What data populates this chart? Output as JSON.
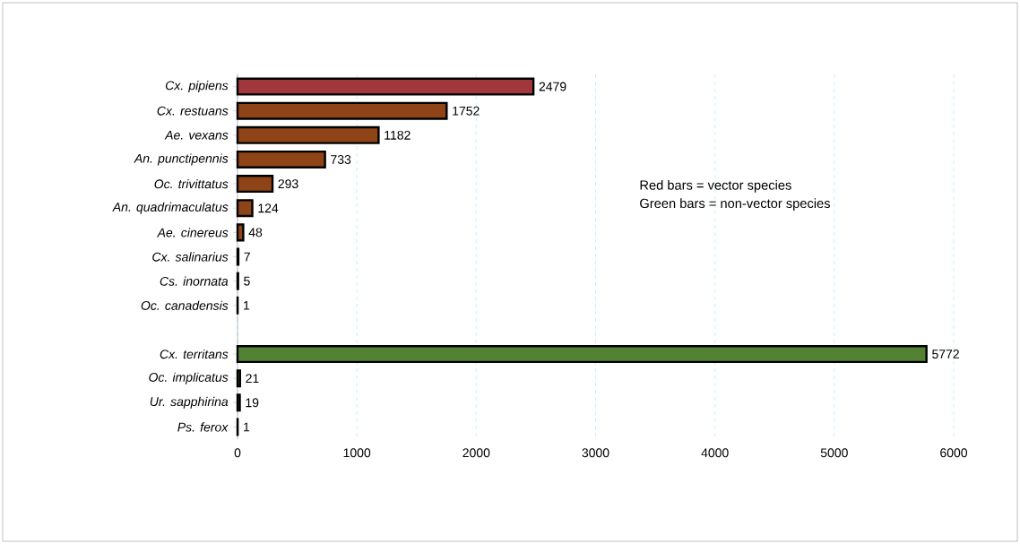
{
  "chart_data": {
    "type": "bar",
    "orientation": "horizontal",
    "categories": [
      "*Cx. pipiens*",
      "*Cx. restuans*",
      "*Ae. vexans*",
      "*An. punctipennis*",
      "*Oc. trivittatus*",
      "*An. quadrimaculatus*",
      "*Ae. cinereus*",
      "*Cx. salinarius*",
      "*Cs. inornata*",
      "*Oc. canadensis*",
      null,
      "*Cx. territans*",
      "*Oc. implicatus*",
      "*Ur. sapphirina*",
      "*Ps. ferox*"
    ],
    "values": [
      2479,
      1752,
      1182,
      733,
      293,
      124,
      48,
      7,
      5,
      1,
      null,
      5772,
      21,
      19,
      1
    ],
    "colors": [
      "#a0373a",
      "#8e4416",
      "#8e4416",
      "#8e4416",
      "#8e4416",
      "#8e4416",
      "#8e4416",
      "#8e4416",
      "#8e4416",
      "#8e4416",
      "#8e4416",
      "#548235",
      "#548235",
      "#548235",
      "#548235"
    ],
    "xlim": [
      0,
      6000
    ],
    "xticks": [
      0,
      1000,
      2000,
      3000,
      4000,
      5000,
      6000
    ],
    "grid": "x",
    "data_labels": true,
    "annotations": [
      "Red bars = vector species",
      "Green bars = non-vector species"
    ]
  }
}
